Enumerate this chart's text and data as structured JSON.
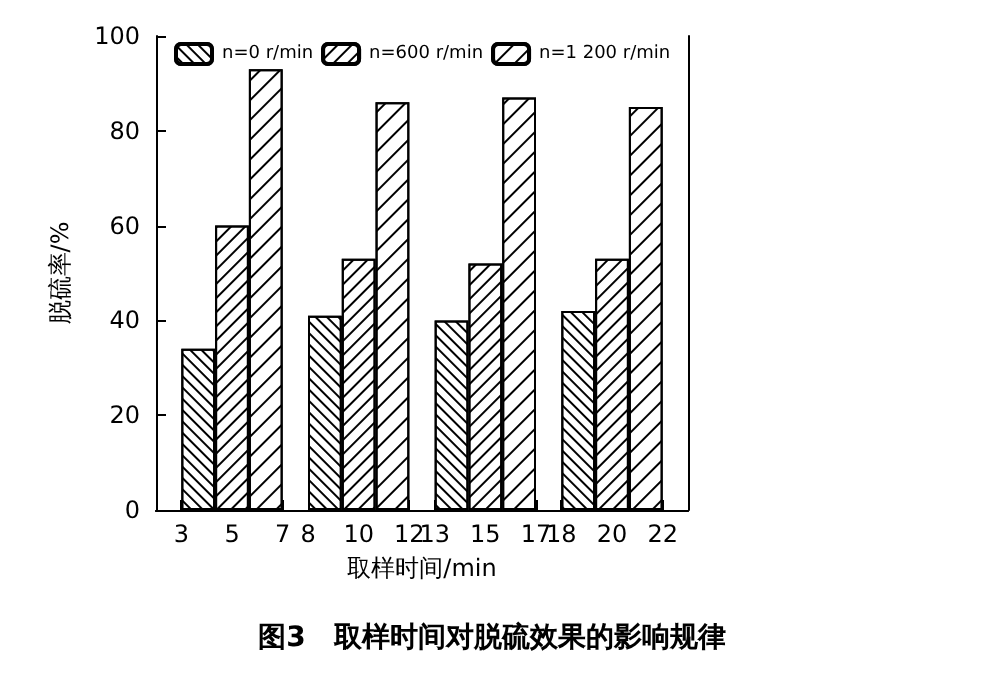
{
  "chart_data": {
    "type": "bar",
    "title": "图3　取样时间对脱硫效果的影响规律",
    "xlabel": "取样时间/min",
    "ylabel": "脱硫率/%",
    "x": [
      5,
      10,
      15,
      20
    ],
    "series": [
      {
        "name": "n=0 r/min",
        "color": "#ffffff",
        "values": [
          34,
          41,
          40,
          42
        ]
      },
      {
        "name": "n=600 r/min",
        "color": "#ffffff",
        "values": [
          60,
          53,
          52,
          53
        ]
      },
      {
        "name": "n=1 200 r/min",
        "color": "#ffffff",
        "values": [
          93,
          86,
          87,
          85
        ]
      }
    ],
    "xlim": [
      2,
      23
    ],
    "xticks": [
      3,
      5,
      7,
      8,
      10,
      12,
      13,
      15,
      17,
      18,
      20,
      22
    ],
    "ylim": [
      0,
      100
    ],
    "yticks": [
      0,
      20,
      40,
      60,
      80,
      100
    ],
    "grid": false,
    "legend": "top"
  }
}
